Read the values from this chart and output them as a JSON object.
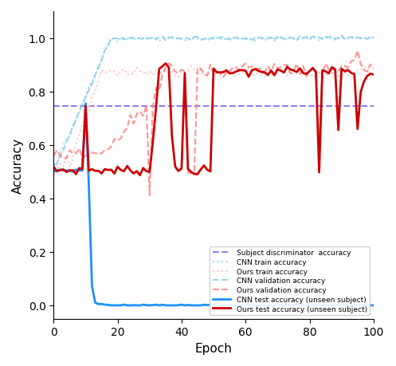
{
  "title": "",
  "xlabel": "Epoch",
  "ylabel": "Accuracy",
  "xlim": [
    0,
    100
  ],
  "ylim": [
    -0.05,
    1.1
  ],
  "legend_loc": "lower right",
  "lines": {
    "subject_discriminator": {
      "label": "Subject discriminator  accuracy",
      "color": "#7B68EE",
      "linestyle": "--",
      "linewidth": 1.5,
      "alpha": 0.85
    },
    "cnn_train": {
      "label": "CNN train accuracy",
      "color": "#87CEEB",
      "linestyle": ":",
      "linewidth": 1.5,
      "alpha": 0.85
    },
    "ours_train": {
      "label": "Ours train accuracy",
      "color": "#FFB6C1",
      "linestyle": ":",
      "linewidth": 1.5,
      "alpha": 0.85
    },
    "cnn_val": {
      "label": "CNN validation accuracy",
      "color": "#87CEEB",
      "linestyle": "--",
      "linewidth": 1.5,
      "alpha": 0.85
    },
    "ours_val": {
      "label": "Ours validation accuracy",
      "color": "#FF8080",
      "linestyle": "--",
      "linewidth": 1.5,
      "alpha": 0.85
    },
    "cnn_test": {
      "label": "CNN test accuracy (unseen subject)",
      "color": "#1E90FF",
      "linestyle": "-",
      "linewidth": 2.0,
      "alpha": 1.0
    },
    "ours_test": {
      "label": "Ours test accuracy (unseen subject)",
      "color": "#CC0000",
      "linestyle": "-",
      "linewidth": 2.0,
      "alpha": 1.0
    }
  }
}
